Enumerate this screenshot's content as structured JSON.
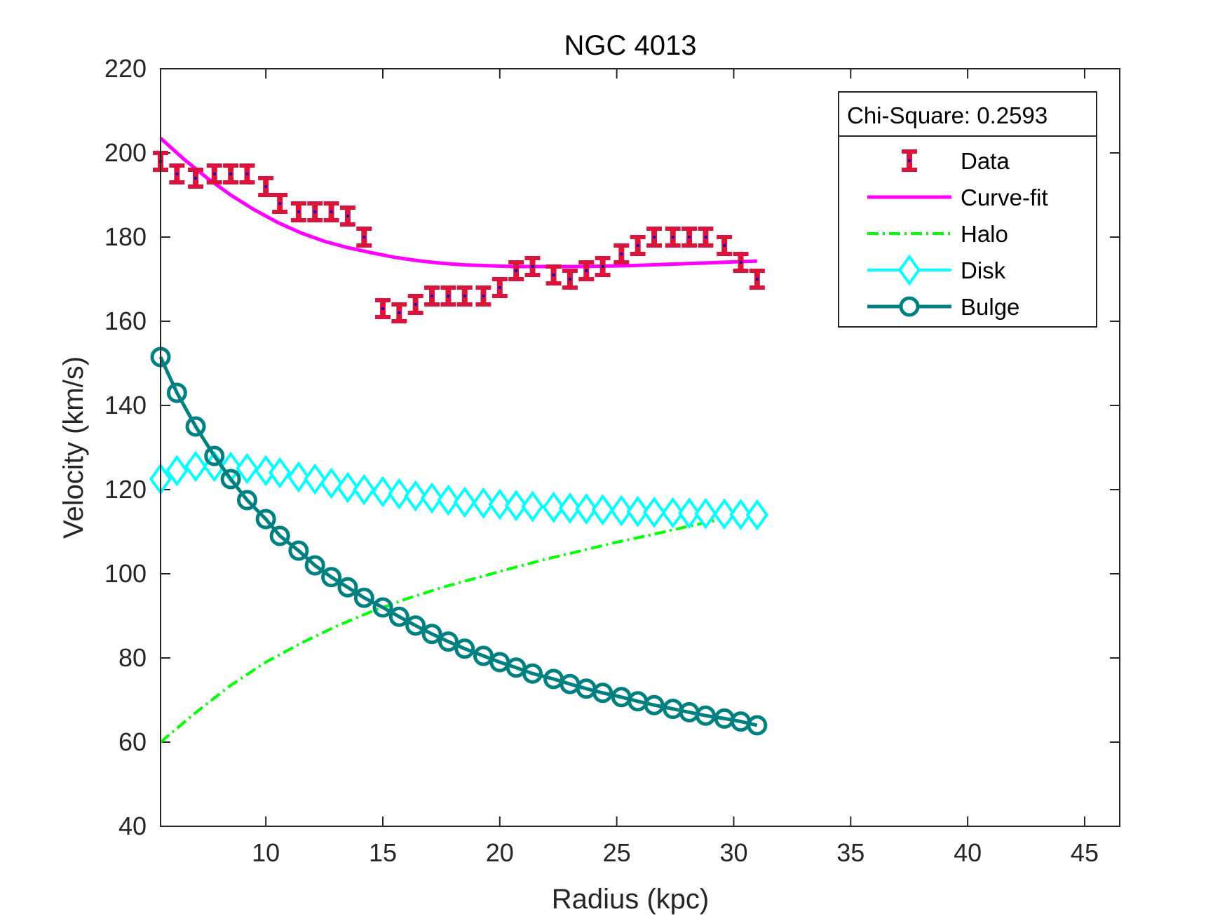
{
  "chart_data": {
    "type": "line",
    "title": "NGC 4013",
    "xlabel": "Radius (kpc)",
    "ylabel": "Velocity (km/s)",
    "xlim": [
      5.5,
      46.5
    ],
    "ylim": [
      40,
      220
    ],
    "xticks": [
      10,
      15,
      20,
      25,
      30,
      35,
      40,
      45
    ],
    "yticks": [
      40,
      60,
      80,
      100,
      120,
      140,
      160,
      180,
      200,
      220
    ],
    "grid": false,
    "legend_position": "top-right",
    "chi_square_label": "Chi-Square: 0.2593",
    "colors": {
      "data": "#DC143C",
      "data_marker": "#0000CD",
      "curve_fit": "#FF00FF",
      "halo": "#00FF00",
      "disk": "#00FFFF",
      "bulge": "#008080"
    },
    "data_points": {
      "name": "Data",
      "x": [
        5.5,
        6.2,
        7.0,
        7.8,
        8.5,
        9.2,
        10.0,
        10.6,
        11.4,
        12.1,
        12.8,
        13.5,
        14.2,
        15.0,
        15.7,
        16.4,
        17.1,
        17.8,
        18.5,
        19.3,
        20.0,
        20.7,
        21.4,
        22.3,
        23.0,
        23.7,
        24.4,
        25.2,
        25.9,
        26.6,
        27.4,
        28.1,
        28.8,
        29.6,
        30.3,
        31.0
      ],
      "y": [
        198,
        195,
        194,
        195,
        195,
        195,
        192,
        188,
        186,
        186,
        186,
        185,
        180,
        163,
        162,
        164,
        166,
        166,
        166,
        166,
        168,
        172,
        173,
        171,
        170,
        172,
        173,
        176,
        178,
        180,
        180,
        180,
        180,
        178,
        174,
        170
      ],
      "err": [
        2,
        2,
        2,
        2,
        2,
        2,
        2,
        2,
        2,
        2,
        2,
        2,
        2,
        2,
        2,
        2,
        2,
        2,
        2,
        2,
        2,
        2,
        2,
        2,
        2,
        2,
        2,
        2,
        2,
        2,
        2,
        2,
        2,
        2,
        2,
        2
      ]
    },
    "series": [
      {
        "name": "Curve-fit",
        "style": "solid",
        "marker": "none",
        "x": [
          5.5,
          6.5,
          7.5,
          8.5,
          9.5,
          10.5,
          11.5,
          12.5,
          13.5,
          14.5,
          15.5,
          16.5,
          17.5,
          18.5,
          19.5,
          20.5,
          21.5,
          22.5,
          23.5,
          24.5,
          25.5,
          26.5,
          27.5,
          28.5,
          29.5,
          30.5,
          31.0
        ],
        "values": [
          203.5,
          198.5,
          194.0,
          190.0,
          186.5,
          183.5,
          181.0,
          179.0,
          177.5,
          176.3,
          175.2,
          174.4,
          173.8,
          173.4,
          173.2,
          173.0,
          173.0,
          173.0,
          173.0,
          173.1,
          173.2,
          173.4,
          173.6,
          173.8,
          174.0,
          174.2,
          174.3
        ]
      },
      {
        "name": "Halo",
        "style": "dashdot",
        "marker": "none",
        "x": [
          5.5,
          7.0,
          8.5,
          10.0,
          11.5,
          13.0,
          14.5,
          16.0,
          17.5,
          19.0,
          20.5,
          22.0,
          23.5,
          25.0,
          26.5,
          28.0,
          29.5,
          31.0
        ],
        "values": [
          60,
          67,
          73.5,
          79,
          83.5,
          87.5,
          91,
          94,
          96.7,
          99,
          101.3,
          103.5,
          105.5,
          107.5,
          109.3,
          111.2,
          113,
          114.5
        ]
      },
      {
        "name": "Disk",
        "style": "solid",
        "marker": "diamond",
        "x": [
          5.5,
          6.2,
          7.0,
          7.8,
          8.5,
          9.2,
          10.0,
          10.6,
          11.4,
          12.1,
          12.8,
          13.5,
          14.2,
          15.0,
          15.7,
          16.4,
          17.1,
          17.8,
          18.5,
          19.3,
          20.0,
          20.7,
          21.4,
          22.3,
          23.0,
          23.7,
          24.4,
          25.2,
          25.9,
          26.6,
          27.4,
          28.1,
          28.8,
          29.6,
          30.3,
          31.0
        ],
        "values": [
          122.5,
          124.5,
          125.5,
          125.5,
          125.3,
          125,
          124.5,
          124,
          123,
          122.5,
          121.5,
          120.5,
          120,
          119.5,
          119,
          118.5,
          118,
          117.5,
          117,
          116.8,
          116.5,
          116.2,
          116,
          115.8,
          115.6,
          115.4,
          115.2,
          115,
          114.8,
          114.6,
          114.5,
          114.4,
          114.3,
          114.2,
          114.1,
          114
        ]
      },
      {
        "name": "Bulge",
        "style": "solid",
        "marker": "circle",
        "x": [
          5.5,
          6.2,
          7.0,
          7.8,
          8.5,
          9.2,
          10.0,
          10.6,
          11.4,
          12.1,
          12.8,
          13.5,
          14.2,
          15.0,
          15.7,
          16.4,
          17.1,
          17.8,
          18.5,
          19.3,
          20.0,
          20.7,
          21.4,
          22.3,
          23.0,
          23.7,
          24.4,
          25.2,
          25.9,
          26.6,
          27.4,
          28.1,
          28.8,
          29.6,
          30.3,
          31.0
        ],
        "values": [
          151.5,
          143,
          135,
          128,
          122.5,
          117.5,
          113,
          109,
          105.5,
          102,
          99.2,
          96.8,
          94.3,
          92,
          89.8,
          87.7,
          85.7,
          83.9,
          82.2,
          80.5,
          79,
          77.7,
          76.3,
          75,
          73.8,
          72.7,
          71.7,
          70.7,
          69.7,
          68.8,
          67.9,
          67.1,
          66.3,
          65.6,
          64.9,
          64
        ]
      }
    ]
  }
}
